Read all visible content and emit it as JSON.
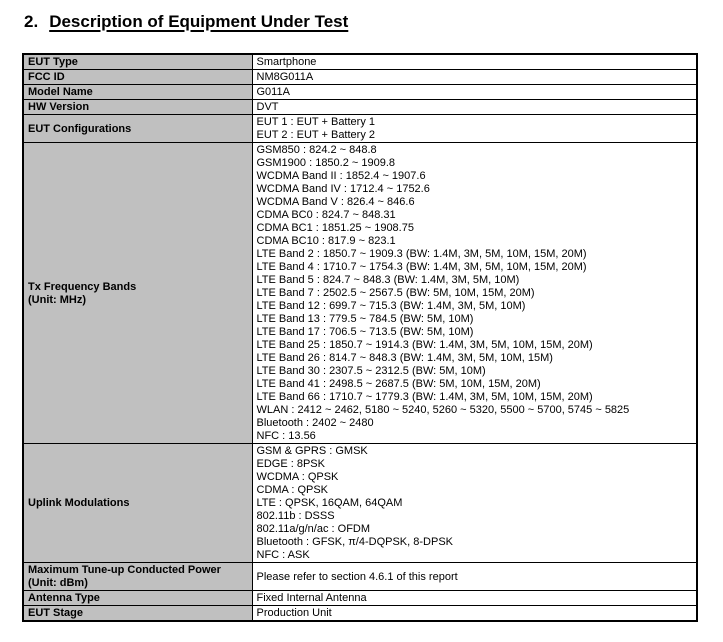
{
  "document": {
    "section_number": "2.",
    "section_title": "Description of Equipment Under Test"
  },
  "eut_table": {
    "rows": [
      {
        "label_lines": [
          "EUT Type"
        ],
        "value_lines": [
          "Smartphone"
        ]
      },
      {
        "label_lines": [
          "FCC ID"
        ],
        "value_lines": [
          "NM8G011A"
        ]
      },
      {
        "label_lines": [
          "Model Name"
        ],
        "value_lines": [
          "G011A"
        ]
      },
      {
        "label_lines": [
          "HW Version"
        ],
        "value_lines": [
          "DVT"
        ]
      },
      {
        "label_lines": [
          "EUT Configurations"
        ],
        "value_lines": [
          "EUT 1 : EUT + Battery 1",
          "EUT 2 : EUT + Battery 2"
        ]
      },
      {
        "label_lines": [
          "Tx Frequency Bands",
          "(Unit: MHz)"
        ],
        "value_lines": [
          "GSM850 : 824.2 ~ 848.8",
          "GSM1900 : 1850.2 ~ 1909.8",
          "WCDMA Band II : 1852.4 ~ 1907.6",
          "WCDMA Band IV : 1712.4 ~ 1752.6",
          "WCDMA Band V : 826.4 ~ 846.6",
          "CDMA BC0 : 824.7 ~ 848.31",
          "CDMA BC1 : 1851.25 ~ 1908.75",
          "CDMA BC10 : 817.9 ~ 823.1",
          "LTE Band 2 : 1850.7 ~ 1909.3 (BW: 1.4M, 3M, 5M, 10M, 15M, 20M)",
          "LTE Band 4 : 1710.7 ~ 1754.3 (BW: 1.4M, 3M, 5M, 10M, 15M, 20M)",
          "LTE Band 5 : 824.7 ~ 848.3 (BW: 1.4M, 3M, 5M, 10M)",
          "LTE Band 7 : 2502.5 ~ 2567.5 (BW: 5M, 10M, 15M, 20M)",
          "LTE Band 12 : 699.7 ~ 715.3 (BW: 1.4M, 3M, 5M, 10M)",
          "LTE Band 13 : 779.5 ~ 784.5 (BW: 5M, 10M)",
          "LTE Band 17 : 706.5 ~ 713.5 (BW: 5M, 10M)",
          "LTE Band 25 : 1850.7 ~ 1914.3 (BW: 1.4M, 3M, 5M, 10M, 15M, 20M)",
          "LTE Band 26 : 814.7 ~ 848.3 (BW: 1.4M, 3M, 5M, 10M, 15M)",
          "LTE Band 30 : 2307.5 ~ 2312.5 (BW: 5M, 10M)",
          "LTE Band 41 : 2498.5 ~ 2687.5 (BW: 5M, 10M, 15M, 20M)",
          "LTE Band 66 : 1710.7 ~ 1779.3 (BW: 1.4M, 3M, 5M, 10M, 15M, 20M)",
          "WLAN : 2412 ~ 2462, 5180 ~ 5240, 5260 ~ 5320, 5500 ~ 5700, 5745 ~ 5825",
          "Bluetooth : 2402 ~ 2480",
          "NFC : 13.56"
        ]
      },
      {
        "label_lines": [
          "Uplink Modulations"
        ],
        "value_lines": [
          "GSM & GPRS : GMSK",
          "EDGE : 8PSK",
          "WCDMA : QPSK",
          "CDMA : QPSK",
          "LTE : QPSK, 16QAM, 64QAM",
          "802.11b : DSSS",
          "802.11a/g/n/ac : OFDM",
          "Bluetooth : GFSK, π/4-DQPSK, 8-DPSK",
          "NFC : ASK"
        ]
      },
      {
        "label_lines": [
          "Maximum Tune-up Conducted Power",
          "(Unit: dBm)"
        ],
        "value_lines": [
          "Please refer to section 4.6.1 of this report"
        ]
      },
      {
        "label_lines": [
          "Antenna Type"
        ],
        "value_lines": [
          "Fixed Internal Antenna"
        ]
      },
      {
        "label_lines": [
          "EUT Stage"
        ],
        "value_lines": [
          "Production Unit"
        ]
      }
    ]
  },
  "colors": {
    "label_bg": "#c0c0c0",
    "value_bg": "#ffffff",
    "border": "#000000",
    "text": "#000000",
    "page_bg": "#ffffff"
  }
}
